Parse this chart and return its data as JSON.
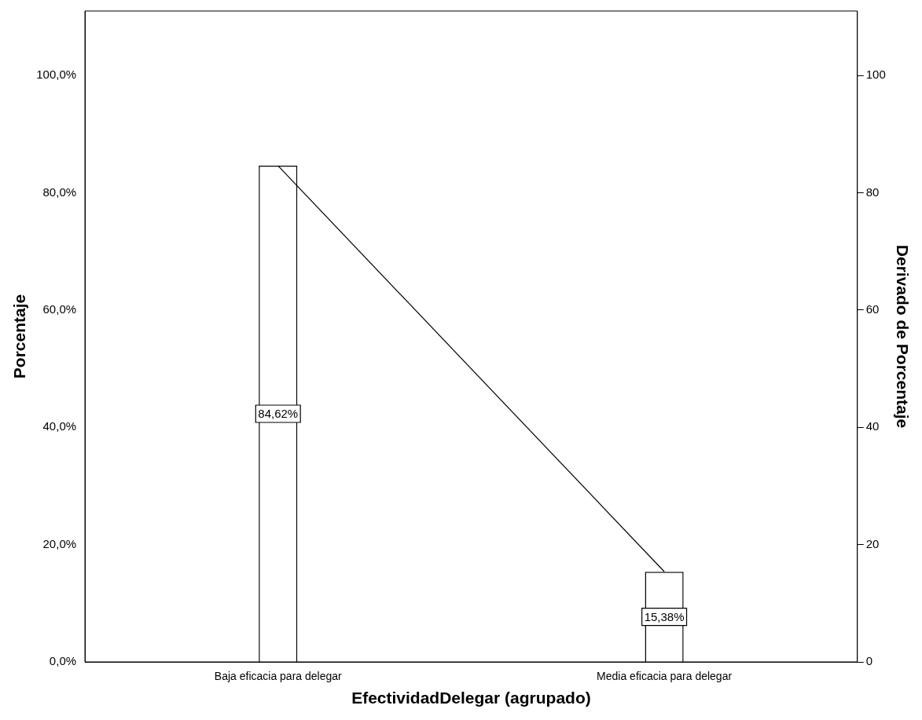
{
  "chart_data": {
    "type": "bar",
    "xlabel": "EfectividadDelegar (agrupado)",
    "ylabel": "Porcentaje",
    "y2label": "Derivado de Porcentaje",
    "categories": [
      "Baja eficacia para delegar",
      "Media eficacia para delegar"
    ],
    "series": [
      {
        "color": "#ffffff",
        "values": [
          84.62,
          15.38
        ],
        "value_labels": [
          "84,62%",
          "15,38%"
        ]
      },
      {
        "type": "line",
        "axis": "y2",
        "color": "#000000",
        "values": [
          84.6,
          15.4
        ]
      }
    ],
    "ylim": [
      0,
      111
    ],
    "yticks": [
      {
        "value": 0,
        "label": "0,0%"
      },
      {
        "value": 20,
        "label": "20,0%"
      },
      {
        "value": 40,
        "label": "40,0%"
      },
      {
        "value": 60,
        "label": "60,0%"
      },
      {
        "value": 80,
        "label": "80,0%"
      },
      {
        "value": 100,
        "label": "100,0%"
      }
    ],
    "y2lim": [
      0,
      111
    ],
    "y2ticks": [
      0,
      20,
      40,
      60,
      80,
      100
    ],
    "grid": false,
    "legend": false
  }
}
